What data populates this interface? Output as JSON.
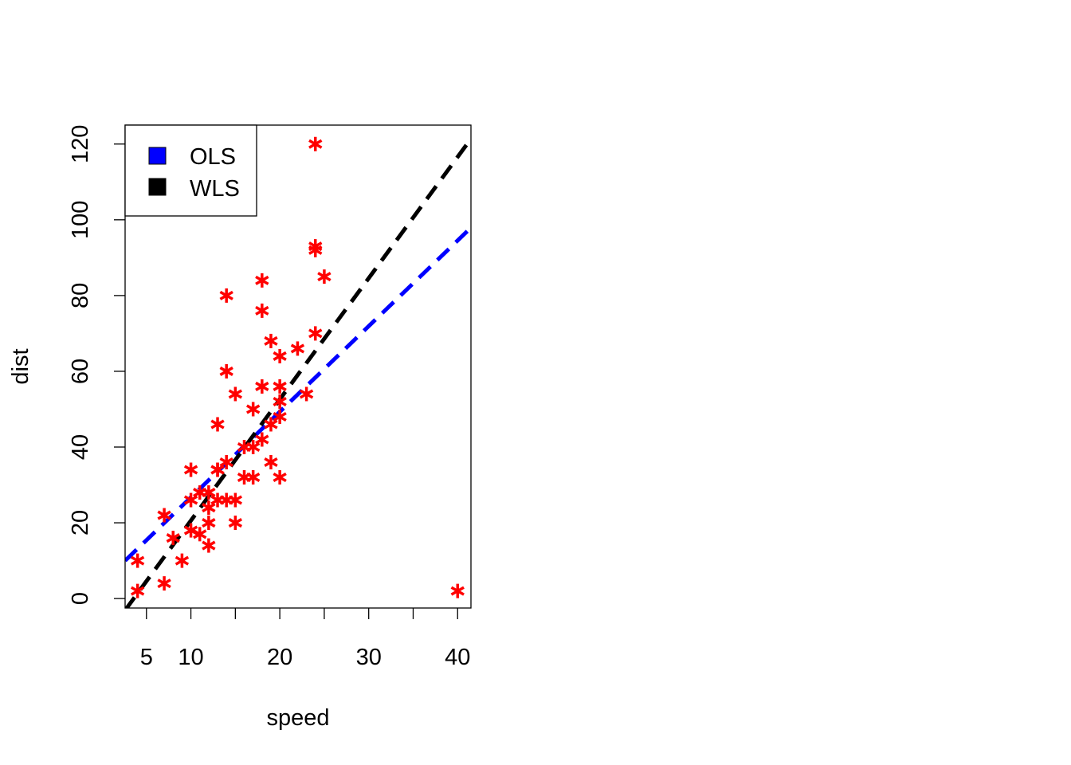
{
  "chart_data": {
    "type": "scatter",
    "xlabel": "speed",
    "ylabel": "dist",
    "xlim": [
      2.6,
      41.5
    ],
    "ylim": [
      -2.5,
      125
    ],
    "x_ticks": [
      5,
      10,
      15,
      20,
      25,
      30,
      35,
      40
    ],
    "x_tick_labels": [
      "5",
      "10",
      "",
      "20",
      "",
      "30",
      "",
      "40"
    ],
    "y_ticks": [
      0,
      20,
      40,
      60,
      80,
      100,
      120
    ],
    "y_tick_labels": [
      "0",
      "20",
      "40",
      "60",
      "80",
      "100",
      "120"
    ],
    "grid": false,
    "legend_position": "top-left",
    "series": [
      {
        "type": "scatter",
        "marker": "asterisk",
        "color": "#ff0000",
        "x": [
          4,
          4,
          7,
          7,
          8,
          9,
          10,
          10,
          10,
          11,
          11,
          12,
          12,
          12,
          12,
          13,
          13,
          13,
          13,
          14,
          14,
          14,
          14,
          15,
          15,
          15,
          16,
          16,
          17,
          17,
          17,
          18,
          18,
          18,
          18,
          19,
          19,
          19,
          20,
          20,
          20,
          20,
          20,
          22,
          23,
          24,
          24,
          24,
          24,
          25,
          40
        ],
        "y": [
          2,
          10,
          4,
          22,
          16,
          10,
          18,
          26,
          34,
          17,
          28,
          14,
          20,
          24,
          28,
          26,
          34,
          34,
          46,
          26,
          36,
          60,
          80,
          20,
          26,
          54,
          32,
          40,
          32,
          40,
          50,
          42,
          56,
          76,
          84,
          36,
          46,
          68,
          32,
          48,
          52,
          56,
          64,
          66,
          54,
          70,
          92,
          93,
          120,
          85,
          2
        ]
      },
      {
        "type": "line",
        "name": "OLS",
        "color": "#0000ff",
        "dash": "dashed",
        "intercept": 4.12,
        "slope": 2.26
      },
      {
        "type": "line",
        "name": "WLS",
        "color": "#000000",
        "dash": "dashed",
        "intercept": -11.41,
        "slope": 3.2
      }
    ],
    "legend": [
      {
        "label": "OLS",
        "color": "#0000ff"
      },
      {
        "label": "WLS",
        "color": "#000000"
      }
    ]
  }
}
